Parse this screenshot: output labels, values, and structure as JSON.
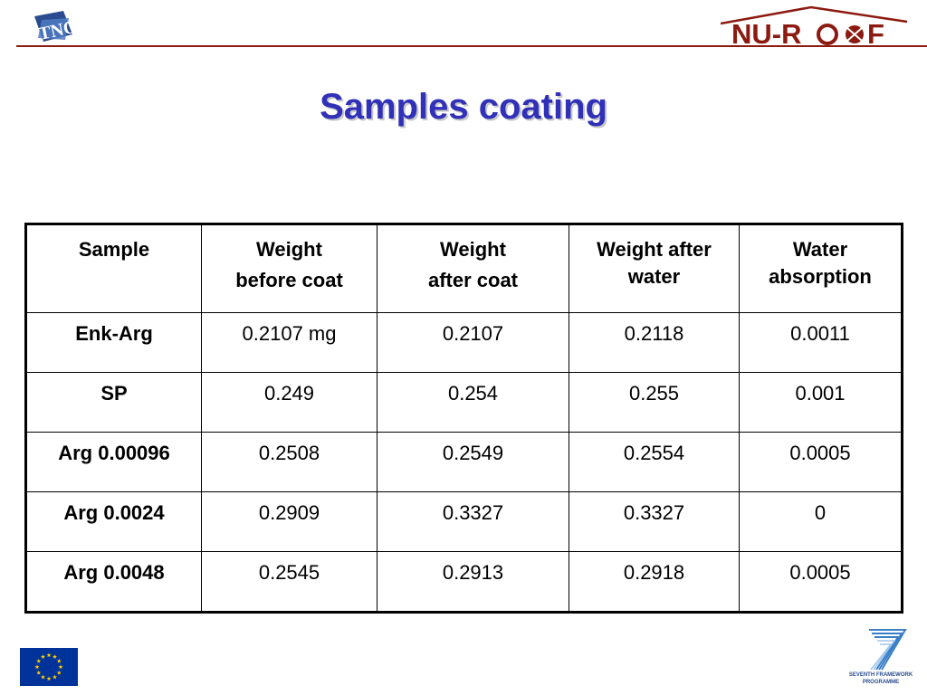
{
  "header": {
    "left_logo": "TNO",
    "right_logo": "NU-ROOF"
  },
  "title": "Samples coating",
  "table": {
    "headers": [
      [
        "Sample"
      ],
      [
        "Weight",
        "before coat"
      ],
      [
        "Weight",
        "after coat"
      ],
      [
        "Weight after water"
      ],
      [
        "Water absorption"
      ]
    ],
    "rows": [
      [
        "Enk-Arg",
        "0.2107 mg",
        "0.2107",
        "0.2118",
        "0.0011"
      ],
      [
        "SP",
        "0.249",
        "0.254",
        "0.255",
        "0.001"
      ],
      [
        "Arg 0.00096",
        "0.2508",
        "0.2549",
        "0.2554",
        "0.0005"
      ],
      [
        "Arg 0.0024",
        "0.2909",
        "0.3327",
        "0.3327",
        "0"
      ],
      [
        "Arg 0.0048",
        "0.2545",
        "0.2913",
        "0.2918",
        "0.0005"
      ]
    ]
  },
  "footer": {
    "fp7_caption_line1": "SEVENTH FRAMEWORK",
    "fp7_caption_line2": "PROGRAMME"
  },
  "colors": {
    "title": "#3030b8",
    "brand_red": "#8c1a10",
    "eu_blue": "#003399",
    "eu_star": "#ffcc00",
    "fp7_blue": "#2a4b8d"
  },
  "icons": {
    "left_logo": "tno-logo",
    "right_logo": "nu-roof-logo",
    "bottom_left": "eu-flag",
    "bottom_right": "fp7-logo"
  }
}
